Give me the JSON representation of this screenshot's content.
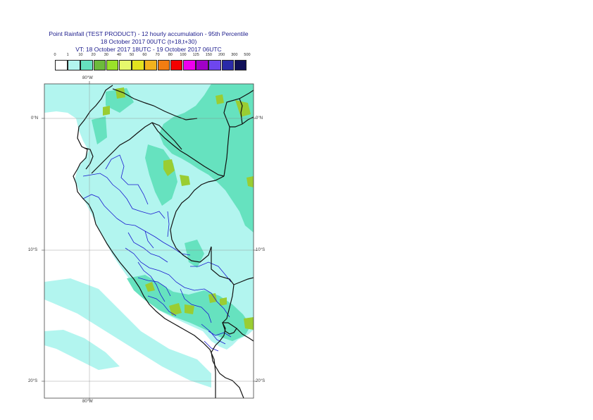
{
  "header": {
    "title_line1": "Point Rainfall (TEST PRODUCT) - 12 hourly accumulation - 95th Percentile",
    "title_line2": "18 October 2017 00UTC (t+18,t+30)",
    "title_line3": "VT: 18 October 2017 18UTC - 19 October 2017 06UTC"
  },
  "legend": {
    "thresholds": [
      "0",
      "1",
      "10",
      "20",
      "30",
      "40",
      "50",
      "60",
      "70",
      "80",
      "100",
      "125",
      "150",
      "200",
      "300",
      "500"
    ],
    "colors": [
      "#ffffff",
      "#b2f5ef",
      "#66e2bf",
      "#6cbb3c",
      "#9ae12a",
      "#e6f86c",
      "#e2e21e",
      "#f2b21e",
      "#f27d12",
      "#f40000",
      "#ee00ee",
      "#a000c8",
      "#6e46ee",
      "#2a2aa8",
      "#101058"
    ]
  },
  "map": {
    "lon_label_top": "80°W",
    "lon_label_bottom": "80°W",
    "lat_labels_left": [
      "0°N",
      "10°S",
      "20°S"
    ],
    "lat_labels_right": [
      "0°N",
      "10°S",
      "20°S"
    ],
    "colors": {
      "ocean_background": "#ffffff",
      "light_rain": "#b2f5ef",
      "moderate_rain": "#66e2bf",
      "heavy_rain": "#9acd32",
      "national_border": "#111111",
      "regional_border": "#1a1ad0",
      "graticule": "#888888"
    }
  }
}
